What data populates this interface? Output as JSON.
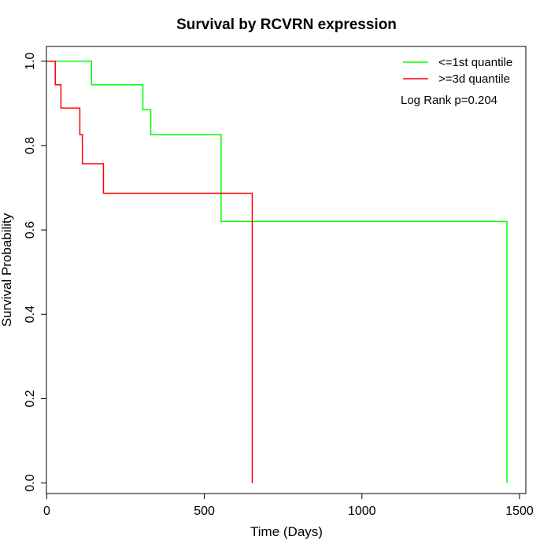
{
  "chart_data": {
    "type": "line",
    "step": true,
    "title": "Survival by RCVRN expression",
    "xlabel": "Time (Days)",
    "ylabel": "Survival Probability",
    "xlim": [
      -1,
      1520
    ],
    "ylim": [
      -0.025,
      1.035
    ],
    "xticks": [
      0,
      500,
      1000,
      1500
    ],
    "yticks": [
      0.0,
      0.2,
      0.4,
      0.6,
      0.8,
      1.0
    ],
    "xtick_labels": [
      "0",
      "500",
      "1000",
      "1500"
    ],
    "ytick_labels": [
      "0.0",
      "0.2",
      "0.4",
      "0.6",
      "0.8",
      "1.0"
    ],
    "legend_position": "top-right",
    "annotation": "Log Rank p=0.204",
    "series": [
      {
        "name": "<=1st quantile",
        "color": "#00ff00",
        "x": [
          0,
          142,
          305,
          330,
          553,
          1460,
          1460
        ],
        "y": [
          1.0,
          0.944,
          0.885,
          0.826,
          0.62,
          0.62,
          0.0
        ]
      },
      {
        "name": ">=3d quantile",
        "color": "#ff0000",
        "x": [
          0,
          27,
          45,
          105,
          113,
          180,
          652,
          652
        ],
        "y": [
          1.0,
          0.944,
          0.889,
          0.826,
          0.757,
          0.687,
          0.687,
          0.0
        ]
      }
    ]
  }
}
